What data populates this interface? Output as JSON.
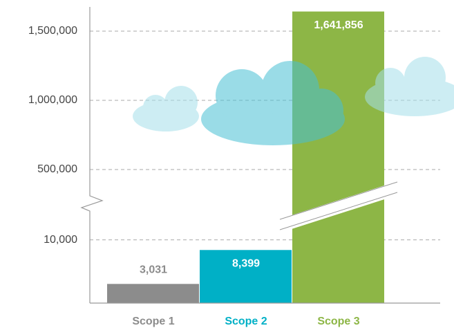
{
  "chart_data": {
    "type": "bar",
    "categories": [
      "Scope 1",
      "Scope 2",
      "Scope 3"
    ],
    "values": [
      3031,
      8399,
      1641856
    ],
    "value_labels": [
      "3,031",
      "8,399",
      "1,641,856"
    ],
    "colors": [
      "#8c8c8c",
      "#00b0c6",
      "#8db646"
    ],
    "ylim": [
      0,
      1650000
    ],
    "y_break": [
      15000,
      250000
    ],
    "yticks": [
      {
        "value": 10000,
        "label": "10,000"
      },
      {
        "value": 500000,
        "label": "500,000"
      },
      {
        "value": 1000000,
        "label": "1,000,000"
      },
      {
        "value": 1500000,
        "label": "1,500,000"
      }
    ],
    "grid": true
  }
}
